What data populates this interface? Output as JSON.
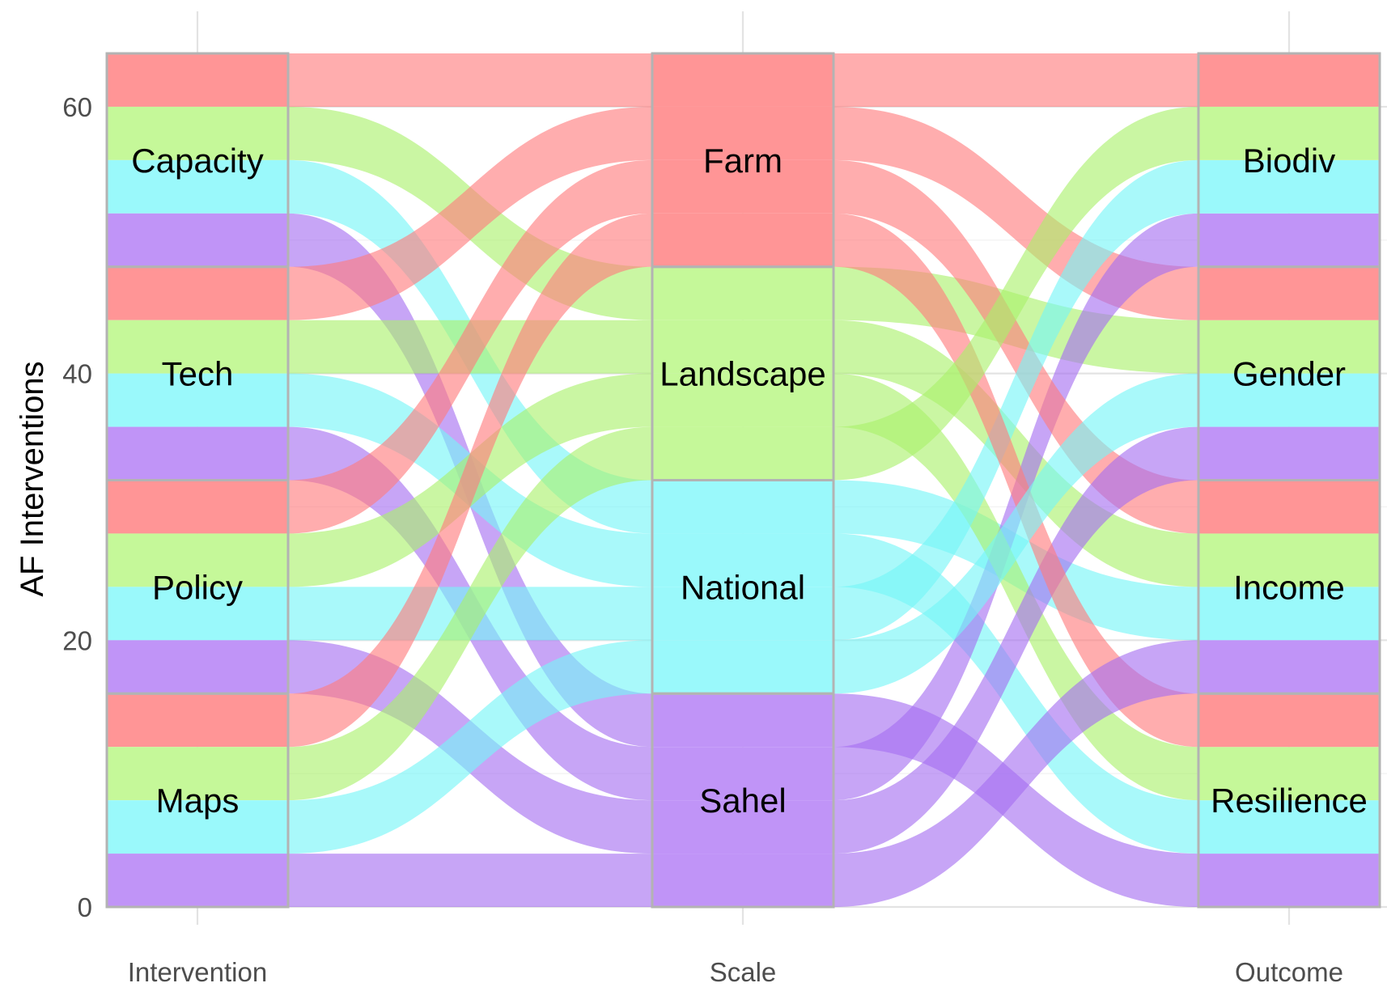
{
  "chart_data": {
    "type": "alluvial",
    "ylabel": "AF Interventions",
    "axes": [
      "Intervention",
      "Scale",
      "Outcome"
    ],
    "strata": {
      "Intervention": [
        "Capacity",
        "Tech",
        "Policy",
        "Maps"
      ],
      "Scale": [
        "Farm",
        "Landscape",
        "National",
        "Sahel"
      ],
      "Outcome": [
        "Biodiv",
        "Gender",
        "Income",
        "Resilience"
      ]
    },
    "fill_variable": "Scale",
    "y_ticks": [
      0,
      20,
      40,
      60
    ],
    "ylim": [
      0,
      64
    ],
    "grid": true,
    "colors": {
      "Farm": "#F8766D",
      "Landscape": "#7CAE00",
      "National": "#00BFC4",
      "Sahel": "#C77CFF",
      "Farm_band": "#ff9596",
      "Landscape_band": "#c5f899",
      "National_band": "#9af9fb",
      "Sahel_band": "#c094f7",
      "Farm_flow": "#ff7a7c",
      "Landscape_flow": "#a9f06a",
      "National_flow": "#74f5f7",
      "Sahel_flow": "#a56ef0",
      "stratum_border": "#b3b3b3"
    },
    "flows": [
      {
        "intervention": "Capacity",
        "scale": "Farm",
        "outcome": "Biodiv",
        "value": 4
      },
      {
        "intervention": "Capacity",
        "scale": "Landscape",
        "outcome": "Gender",
        "value": 4
      },
      {
        "intervention": "Capacity",
        "scale": "National",
        "outcome": "Income",
        "value": 4
      },
      {
        "intervention": "Capacity",
        "scale": "Sahel",
        "outcome": "Resilience",
        "value": 4
      },
      {
        "intervention": "Tech",
        "scale": "Farm",
        "outcome": "Gender",
        "value": 4
      },
      {
        "intervention": "Tech",
        "scale": "Landscape",
        "outcome": "Income",
        "value": 4
      },
      {
        "intervention": "Tech",
        "scale": "National",
        "outcome": "Resilience",
        "value": 4
      },
      {
        "intervention": "Tech",
        "scale": "Sahel",
        "outcome": "Biodiv",
        "value": 4
      },
      {
        "intervention": "Policy",
        "scale": "Farm",
        "outcome": "Income",
        "value": 4
      },
      {
        "intervention": "Policy",
        "scale": "Landscape",
        "outcome": "Resilience",
        "value": 4
      },
      {
        "intervention": "Policy",
        "scale": "National",
        "outcome": "Biodiv",
        "value": 4
      },
      {
        "intervention": "Policy",
        "scale": "Sahel",
        "outcome": "Gender",
        "value": 4
      },
      {
        "intervention": "Maps",
        "scale": "Farm",
        "outcome": "Resilience",
        "value": 4
      },
      {
        "intervention": "Maps",
        "scale": "Landscape",
        "outcome": "Biodiv",
        "value": 4
      },
      {
        "intervention": "Maps",
        "scale": "National",
        "outcome": "Gender",
        "value": 4
      },
      {
        "intervention": "Maps",
        "scale": "Sahel",
        "outcome": "Income",
        "value": 4
      }
    ]
  }
}
